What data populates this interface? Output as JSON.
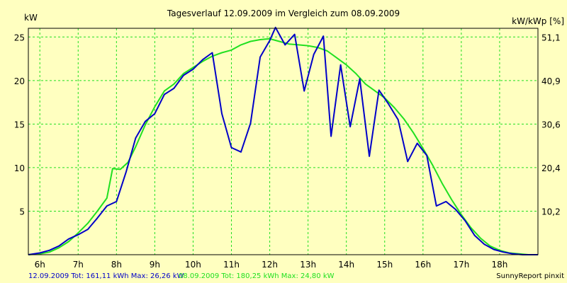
{
  "chart_data": {
    "type": "line",
    "title": "Tagesverlauf 12.09.2009 im Vergleich zum 08.09.2009",
    "ylabel_left": "kW",
    "ylabel_right": "kW/kWp [%]",
    "xlim": [
      5.7,
      19.0
    ],
    "ylim": [
      0,
      26
    ],
    "x_ticks": [
      {
        "x": 6,
        "label": "6h"
      },
      {
        "x": 7,
        "label": "7h"
      },
      {
        "x": 8,
        "label": "8h"
      },
      {
        "x": 9,
        "label": "9h"
      },
      {
        "x": 10,
        "label": "10h"
      },
      {
        "x": 11,
        "label": "11h"
      },
      {
        "x": 12,
        "label": "12h"
      },
      {
        "x": 13,
        "label": "13h"
      },
      {
        "x": 14,
        "label": "14h"
      },
      {
        "x": 15,
        "label": "15h"
      },
      {
        "x": 16,
        "label": "16h"
      },
      {
        "x": 17,
        "label": "17h"
      },
      {
        "x": 18,
        "label": "18h"
      }
    ],
    "y_ticks_left": [
      {
        "y": 5,
        "label": "5"
      },
      {
        "y": 10,
        "label": "10"
      },
      {
        "y": 15,
        "label": "15"
      },
      {
        "y": 20,
        "label": "20"
      },
      {
        "y": 25,
        "label": "25"
      }
    ],
    "y_ticks_right": [
      {
        "y": 5,
        "label": "10,2"
      },
      {
        "y": 10,
        "label": "20,4"
      },
      {
        "y": 15,
        "label": "30,6"
      },
      {
        "y": 20,
        "label": "40,9"
      },
      {
        "y": 25,
        "label": "51,1"
      }
    ],
    "series": [
      {
        "name": "12.09.2009",
        "color": "#0000c8",
        "x": [
          5.7,
          6.0,
          6.25,
          6.5,
          6.75,
          7.0,
          7.25,
          7.5,
          7.75,
          8.0,
          8.25,
          8.5,
          8.75,
          9.0,
          9.25,
          9.5,
          9.75,
          10.0,
          10.25,
          10.5,
          10.75,
          11.0,
          11.25,
          11.5,
          11.75,
          12.0,
          12.15,
          12.4,
          12.65,
          12.9,
          13.15,
          13.4,
          13.6,
          13.85,
          14.1,
          14.35,
          14.6,
          14.85,
          15.1,
          15.35,
          15.6,
          15.85,
          16.1,
          16.35,
          16.6,
          16.85,
          17.1,
          17.35,
          17.6,
          17.85,
          18.1,
          18.35,
          18.6,
          19.0
        ],
        "values": [
          0.0,
          0.2,
          0.5,
          1.0,
          1.8,
          2.3,
          2.9,
          4.2,
          5.6,
          6.1,
          9.5,
          13.4,
          15.3,
          16.2,
          18.4,
          19.1,
          20.6,
          21.3,
          22.4,
          23.2,
          16.2,
          12.3,
          11.8,
          15.1,
          22.7,
          24.6,
          26.1,
          24.1,
          25.3,
          18.8,
          23.0,
          25.1,
          13.6,
          21.8,
          14.7,
          20.2,
          11.3,
          18.9,
          17.3,
          15.5,
          10.7,
          12.8,
          11.4,
          5.6,
          6.1,
          5.2,
          3.9,
          2.2,
          1.2,
          0.6,
          0.3,
          0.1,
          0.0,
          0.0
        ]
      },
      {
        "name": "08.09.2009",
        "color": "#20e020",
        "x": [
          5.7,
          6.0,
          6.25,
          6.5,
          6.75,
          7.0,
          7.25,
          7.5,
          7.75,
          7.9,
          8.1,
          8.3,
          8.5,
          8.75,
          9.0,
          9.25,
          9.5,
          9.75,
          10.0,
          10.25,
          10.5,
          10.75,
          11.0,
          11.25,
          11.5,
          11.75,
          12.0,
          12.25,
          12.5,
          12.75,
          13.0,
          13.25,
          13.5,
          13.75,
          14.0,
          14.25,
          14.5,
          14.75,
          15.0,
          15.25,
          15.5,
          15.75,
          16.0,
          16.25,
          16.5,
          16.75,
          17.0,
          17.25,
          17.5,
          17.75,
          18.0,
          18.25,
          18.5,
          18.75,
          19.0
        ],
        "values": [
          0.0,
          0.1,
          0.3,
          0.8,
          1.5,
          2.5,
          3.6,
          5.0,
          6.5,
          9.9,
          9.8,
          10.6,
          12.4,
          14.9,
          17.0,
          18.8,
          19.6,
          20.8,
          21.5,
          22.2,
          22.8,
          23.2,
          23.5,
          24.1,
          24.5,
          24.7,
          24.8,
          24.5,
          24.2,
          24.1,
          24.0,
          23.8,
          23.4,
          22.6,
          21.8,
          20.8,
          19.6,
          18.8,
          18.0,
          16.9,
          15.6,
          14.0,
          12.2,
          10.3,
          8.2,
          6.3,
          4.6,
          3.1,
          1.9,
          1.0,
          0.5,
          0.2,
          0.1,
          0.0,
          0.0
        ]
      }
    ],
    "legend": [
      {
        "text": "12.09.2009 Tot: 161,11 kWh Max: 26,26 kW",
        "color": "#0000c8"
      },
      {
        "text": "08.09.2009 Tot: 180,25 kWh Max: 24,80 kW",
        "color": "#20e020"
      }
    ],
    "credit": "SunnyReport pinxit"
  },
  "colors": {
    "background": "#ffffc0",
    "plot_area": "#ffffc0",
    "grid": "#20e020",
    "axis": "#000000"
  }
}
